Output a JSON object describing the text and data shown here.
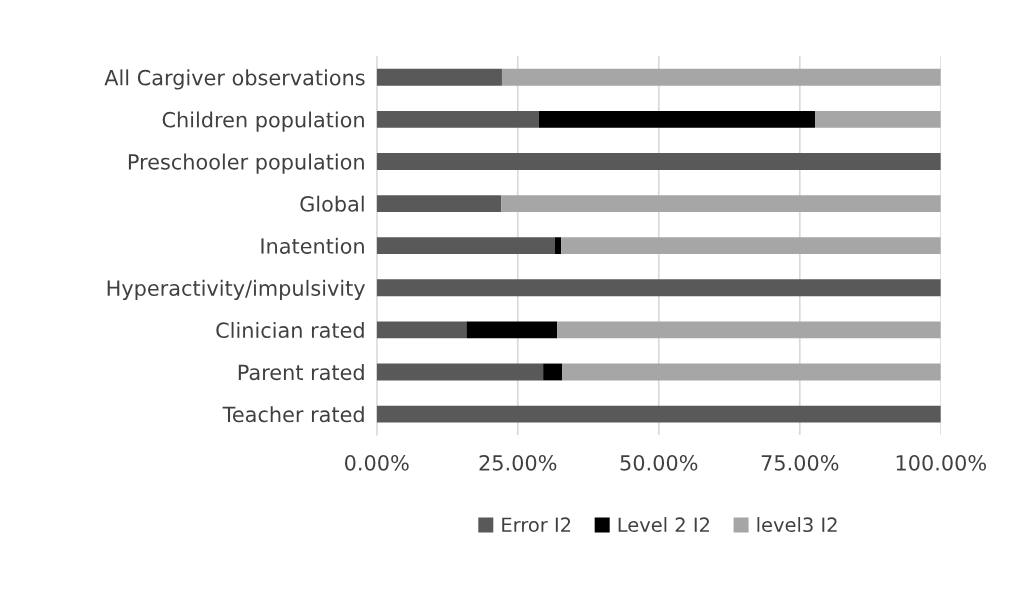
{
  "chart_data": {
    "type": "bar",
    "orientation": "horizontal",
    "stacked": true,
    "categories": [
      "All Cargiver observations",
      "Children population",
      "Preschooler population",
      "Global",
      "Inatention",
      "Hyperactivity/impulsivity",
      "Clinician rated",
      "Parent rated",
      "Teacher rated"
    ],
    "series": [
      {
        "name": "Error I2",
        "color": "#595959",
        "values": [
          22.2,
          28.7,
          100,
          22.1,
          31.6,
          100,
          15.9,
          29.5,
          100
        ]
      },
      {
        "name": "Level 2 I2",
        "color": "#000000",
        "values": [
          0,
          49.0,
          0,
          0,
          1.1,
          0,
          16.1,
          3.4,
          0
        ]
      },
      {
        "name": "level3 I2",
        "color": "#a6a6a6",
        "values": [
          77.8,
          22.3,
          0,
          77.9,
          67.3,
          0,
          68.0,
          67.1,
          0
        ]
      }
    ],
    "xlim": [
      0,
      100
    ],
    "xticks": [
      {
        "value": 0,
        "label": "0.00%"
      },
      {
        "value": 25,
        "label": "25.00%"
      },
      {
        "value": 50,
        "label": "50.00%"
      },
      {
        "value": 75,
        "label": "75.00%"
      },
      {
        "value": 100,
        "label": "100.00%"
      }
    ],
    "grid": "x",
    "legend": "bottom"
  }
}
